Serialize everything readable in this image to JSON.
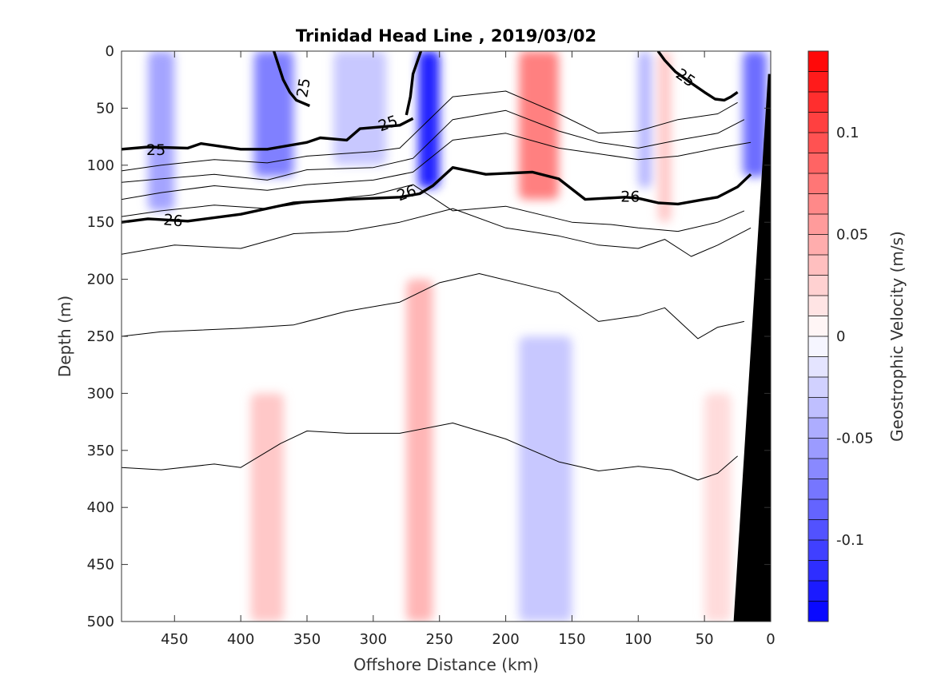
{
  "chart_data": {
    "type": "heatmap",
    "title": "Trinidad Head Line , 2019/03/02",
    "xlabel": "Offshore Distance (km)",
    "ylabel": "Depth (m)",
    "colorbar_label": "Geostrophic Velocity (m/s)",
    "xlim": [
      490,
      0
    ],
    "ylim": [
      0,
      500
    ],
    "x_reversed": true,
    "y_reversed": true,
    "xticks": [
      "450",
      "400",
      "350",
      "300",
      "250",
      "200",
      "150",
      "100",
      "50",
      "0"
    ],
    "yticks": [
      "0",
      "50",
      "100",
      "150",
      "200",
      "250",
      "300",
      "350",
      "400",
      "450",
      "500"
    ],
    "colorbar": {
      "range": [
        -0.14,
        0.14
      ],
      "ticks": [
        "0.1",
        "0.05",
        "0",
        "-0.05",
        "-0.1"
      ],
      "tick_values": [
        0.1,
        0.05,
        0,
        -0.05,
        -0.1
      ],
      "levels": 28,
      "low_color": "#0000ff",
      "mid_color": "#ffffff",
      "high_color": "#ff0000"
    },
    "mask_color": "#000000",
    "velocity_features": [
      {
        "x_center": 460,
        "x_width": 20,
        "depth_top": 0,
        "depth_bottom": 140,
        "value": -0.05
      },
      {
        "x_center": 375,
        "x_width": 30,
        "depth_top": 0,
        "depth_bottom": 110,
        "value": -0.07
      },
      {
        "x_center": 310,
        "x_width": 40,
        "depth_top": 0,
        "depth_bottom": 100,
        "value": -0.03
      },
      {
        "x_center": 258,
        "x_width": 16,
        "depth_top": 0,
        "depth_bottom": 120,
        "value": -0.12
      },
      {
        "x_center": 175,
        "x_width": 30,
        "depth_top": 0,
        "depth_bottom": 130,
        "value": 0.07
      },
      {
        "x_center": 265,
        "x_width": 20,
        "depth_top": 200,
        "depth_bottom": 500,
        "value": 0.04
      },
      {
        "x_center": 380,
        "x_width": 25,
        "depth_top": 300,
        "depth_bottom": 500,
        "value": 0.03
      },
      {
        "x_center": 170,
        "x_width": 40,
        "depth_top": 250,
        "depth_bottom": 500,
        "value": -0.03
      },
      {
        "x_center": 95,
        "x_width": 10,
        "depth_top": 0,
        "depth_bottom": 120,
        "value": -0.04
      },
      {
        "x_center": 80,
        "x_width": 10,
        "depth_top": 0,
        "depth_bottom": 150,
        "value": 0.03
      },
      {
        "x_center": 12,
        "x_width": 18,
        "depth_top": 0,
        "depth_bottom": 110,
        "value": -0.08
      },
      {
        "x_center": 40,
        "x_width": 20,
        "depth_top": 300,
        "depth_bottom": 500,
        "value": 0.02
      }
    ],
    "contours": [
      {
        "label": "25",
        "bold": true,
        "x": [
          490,
          470,
          440,
          430,
          400,
          380,
          365,
          350,
          340,
          320,
          310,
          280,
          270
        ],
        "y": [
          86,
          84,
          85,
          81,
          86,
          86,
          83,
          80,
          76,
          78,
          68,
          65,
          59
        ]
      },
      {
        "label": "25",
        "bold": true,
        "x": [
          375,
          368,
          363,
          358,
          352,
          348
        ],
        "y": [
          0,
          25,
          36,
          43,
          46,
          48
        ]
      },
      {
        "label": "25",
        "bold": true,
        "x": [
          275,
          272,
          270,
          264
        ],
        "y": [
          56,
          40,
          20,
          0
        ]
      },
      {
        "label": "25",
        "bold": true,
        "x": [
          85,
          80,
          72,
          60,
          50,
          42,
          35,
          30,
          25
        ],
        "y": [
          0,
          8,
          18,
          28,
          36,
          42,
          43,
          40,
          36
        ]
      },
      {
        "label": "26",
        "bold": true,
        "x": [
          490,
          470,
          440,
          400,
          360,
          320,
          280,
          265,
          255,
          240,
          215,
          180,
          160,
          140,
          110,
          100,
          85,
          70,
          50,
          40,
          25,
          15
        ],
        "y": [
          150,
          147,
          149,
          143,
          133,
          130,
          128,
          125,
          118,
          102,
          108,
          106,
          112,
          130,
          128,
          129,
          133,
          134,
          130,
          128,
          119,
          108
        ]
      },
      {
        "label": "",
        "bold": false,
        "x": [
          490,
          460,
          420,
          380,
          350,
          300,
          280,
          240,
          200,
          160,
          130,
          100,
          70,
          40,
          25
        ],
        "y": [
          105,
          100,
          95,
          98,
          92,
          88,
          85,
          40,
          35,
          55,
          72,
          70,
          60,
          55,
          45
        ]
      },
      {
        "label": "",
        "bold": false,
        "x": [
          490,
          460,
          420,
          380,
          350,
          300,
          270,
          240,
          200,
          160,
          130,
          100,
          70,
          40,
          20
        ],
        "y": [
          115,
          112,
          108,
          113,
          104,
          102,
          94,
          60,
          52,
          70,
          80,
          85,
          78,
          72,
          60
        ]
      },
      {
        "label": "",
        "bold": false,
        "x": [
          490,
          460,
          420,
          380,
          350,
          300,
          270,
          240,
          200,
          160,
          130,
          100,
          70,
          40,
          15
        ],
        "y": [
          130,
          124,
          118,
          122,
          117,
          113,
          106,
          78,
          72,
          85,
          90,
          95,
          92,
          85,
          80
        ]
      },
      {
        "label": "",
        "bold": false,
        "x": [
          490,
          460,
          420,
          380,
          340,
          300,
          270,
          240,
          200,
          150,
          120,
          100,
          70,
          40,
          20
        ],
        "y": [
          145,
          140,
          135,
          138,
          131,
          126,
          117,
          140,
          136,
          150,
          152,
          155,
          158,
          150,
          140
        ]
      },
      {
        "label": "",
        "bold": false,
        "x": [
          490,
          450,
          400,
          360,
          320,
          280,
          240,
          200,
          160,
          130,
          100,
          80,
          60,
          40,
          15
        ],
        "y": [
          178,
          170,
          173,
          160,
          158,
          150,
          138,
          155,
          162,
          170,
          173,
          165,
          180,
          170,
          155
        ]
      },
      {
        "label": "",
        "bold": false,
        "x": [
          490,
          460,
          400,
          360,
          320,
          280,
          250,
          220,
          160,
          130,
          100,
          80,
          55,
          40,
          20
        ],
        "y": [
          250,
          246,
          243,
          240,
          228,
          220,
          203,
          195,
          212,
          237,
          232,
          225,
          252,
          242,
          237
        ]
      },
      {
        "label": "",
        "bold": false,
        "x": [
          490,
          460,
          420,
          400,
          370,
          350,
          320,
          280,
          240,
          200,
          160,
          130,
          100,
          75,
          55,
          40,
          25
        ],
        "y": [
          365,
          367,
          362,
          365,
          344,
          333,
          335,
          335,
          326,
          340,
          360,
          368,
          364,
          367,
          376,
          370,
          355
        ]
      }
    ],
    "contour_labels": [
      {
        "text": "25",
        "x": 353,
        "y": 32,
        "angle": -80
      },
      {
        "text": "25",
        "x": 289,
        "y": 63,
        "angle": -20
      },
      {
        "text": "25",
        "x": 464,
        "y": 86,
        "angle": 0
      },
      {
        "text": "25",
        "x": 64,
        "y": 23,
        "angle": 35
      },
      {
        "text": "26",
        "x": 451,
        "y": 148,
        "angle": 5
      },
      {
        "text": "26",
        "x": 275,
        "y": 124,
        "angle": -20
      },
      {
        "text": "26",
        "x": 106,
        "y": 127,
        "angle": 0
      }
    ],
    "bottom_mask": {
      "x": [
        28,
        0,
        0,
        28,
        17
      ],
      "y": [
        500,
        500,
        20,
        500,
        500
      ],
      "top_x": 2,
      "bottom_x": 28
    }
  }
}
